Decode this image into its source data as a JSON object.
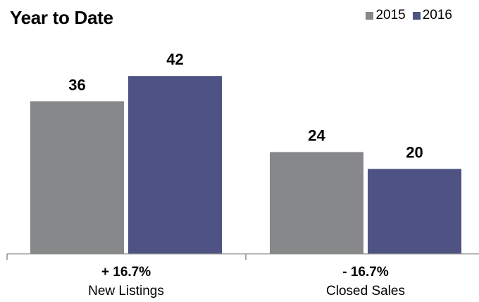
{
  "title": "Year to Date",
  "chart_data": {
    "type": "bar",
    "title": "Year to Date",
    "categories": [
      "New Listings",
      "Closed Sales"
    ],
    "change_labels": [
      "+ 16.7%",
      "- 16.7%"
    ],
    "series": [
      {
        "name": "2015",
        "color": "#87888a",
        "values": [
          36,
          24
        ]
      },
      {
        "name": "2016",
        "color": "#4e5384",
        "values": [
          42,
          20
        ]
      }
    ],
    "data_labels": true,
    "legend_position": "top-right",
    "grid": false,
    "y_axis_visible": false,
    "ylim": [
      0,
      48
    ]
  }
}
